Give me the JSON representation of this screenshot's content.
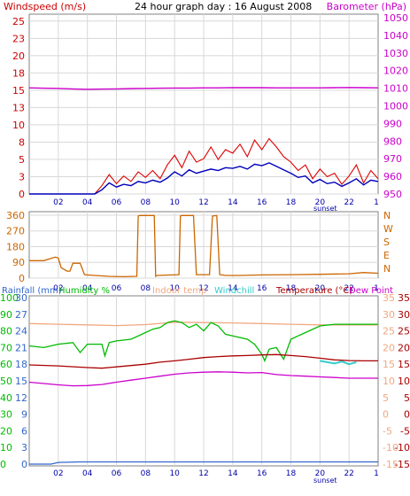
{
  "chart_data": [
    {
      "type": "line",
      "title": "24 hour graph day : 16 August 2008",
      "left_axis": {
        "label": "Windspeed (m/s)",
        "color": "#cc0000",
        "ticks": [
          "0",
          "3",
          "5",
          "8",
          "10",
          "13",
          "15",
          "18",
          "20",
          "23",
          "25"
        ],
        "range": [
          0,
          26
        ]
      },
      "right_axis": {
        "label": "Barometer (hPa)",
        "color": "#cc00cc",
        "ticks": [
          "950",
          "960",
          "970",
          "980",
          "990",
          "1000",
          "1010",
          "1020",
          "1030",
          "1040",
          "1050"
        ],
        "range": [
          950,
          1052
        ]
      },
      "x_ticks": [
        "02",
        "04",
        "06",
        "08",
        "10",
        "12",
        "14",
        "16",
        "18",
        "20",
        "22"
      ],
      "x_end_label": "1",
      "sunset_label": "sunset",
      "grid": true,
      "series": [
        {
          "key": "barometer",
          "color": "#cc00cc",
          "x": [
            0,
            1,
            2,
            3,
            4,
            5,
            6,
            7,
            8,
            9,
            10,
            11,
            12,
            13,
            14,
            15,
            16,
            17,
            18,
            19,
            20,
            21,
            22,
            23,
            24
          ],
          "y": [
            1010.2,
            1010.0,
            1009.9,
            1009.6,
            1009.4,
            1009.5,
            1009.6,
            1009.8,
            1009.9,
            1010.0,
            1010.1,
            1010.1,
            1010.2,
            1010.2,
            1010.3,
            1010.3,
            1010.3,
            1010.2,
            1010.2,
            1010.2,
            1010.2,
            1010.3,
            1010.4,
            1010.3,
            1010.2
          ]
        },
        {
          "key": "gust",
          "color": "#dd0000",
          "x": [
            0,
            4.5,
            5.0,
            5.5,
            6.0,
            6.5,
            7.0,
            7.5,
            8.0,
            8.5,
            9.0,
            9.5,
            10.0,
            10.5,
            11.0,
            11.5,
            12.0,
            12.5,
            13.0,
            13.5,
            14.0,
            14.5,
            15.0,
            15.5,
            16.0,
            16.5,
            17.0,
            17.5,
            18.0,
            18.5,
            19.0,
            19.5,
            20.0,
            20.5,
            21.0,
            21.5,
            22.0,
            22.5,
            23.0,
            23.5,
            24.0
          ],
          "y": [
            0,
            0,
            1.2,
            2.8,
            1.5,
            2.6,
            1.8,
            3.2,
            2.4,
            3.4,
            2.2,
            4.2,
            5.6,
            3.8,
            6.2,
            4.6,
            5.1,
            6.8,
            5.0,
            6.4,
            5.9,
            7.2,
            5.4,
            7.8,
            6.4,
            8.0,
            6.8,
            5.4,
            4.6,
            3.4,
            4.2,
            2.2,
            3.6,
            2.5,
            3.0,
            1.4,
            2.6,
            4.2,
            1.6,
            3.4,
            2.2
          ]
        },
        {
          "key": "wind_avg",
          "color": "#0000bb",
          "x": [
            0,
            4.5,
            5.0,
            5.5,
            6.0,
            6.5,
            7.0,
            7.5,
            8.0,
            8.5,
            9.0,
            9.5,
            10.0,
            10.5,
            11.0,
            11.5,
            12.0,
            12.5,
            13.0,
            13.5,
            14.0,
            14.5,
            15.0,
            15.5,
            16.0,
            16.5,
            17.0,
            17.5,
            18.0,
            18.5,
            19.0,
            19.5,
            20.0,
            20.5,
            21.0,
            21.5,
            22.0,
            22.5,
            23.0,
            23.5,
            24.0
          ],
          "y": [
            0,
            0,
            0.6,
            1.6,
            1.0,
            1.4,
            1.2,
            1.8,
            1.6,
            2.0,
            1.7,
            2.3,
            3.2,
            2.6,
            3.5,
            3.0,
            3.3,
            3.6,
            3.4,
            3.8,
            3.7,
            4.0,
            3.6,
            4.3,
            4.1,
            4.5,
            4.0,
            3.5,
            3.0,
            2.4,
            2.6,
            1.6,
            2.1,
            1.5,
            1.7,
            1.1,
            1.6,
            2.2,
            1.3,
            2.0,
            1.8
          ]
        }
      ]
    },
    {
      "type": "line",
      "left_axis": {
        "ticks": [
          "0",
          "90",
          "180",
          "270",
          "360"
        ],
        "range": [
          0,
          380
        ]
      },
      "right_axis": {
        "ticks": [
          "N",
          "E",
          "S",
          "W",
          "N"
        ],
        "color": "#cc6600"
      },
      "x_ticks": [
        "02",
        "04",
        "06",
        "08",
        "10",
        "12",
        "14",
        "16",
        "18",
        "20",
        "22"
      ],
      "x_end_label": "1",
      "grid": true,
      "series": [
        {
          "key": "wind_direction",
          "color": "#cc6600",
          "x": [
            0,
            1.0,
            1.8,
            2.0,
            2.2,
            2.6,
            2.8,
            3.0,
            3.5,
            3.8,
            4.5,
            5.5,
            6.5,
            7.4,
            7.5,
            7.6,
            8.6,
            8.7,
            8.8,
            10.3,
            10.4,
            10.5,
            11.3,
            11.5,
            12.4,
            12.6,
            12.9,
            13.1,
            13.5,
            14.5,
            16,
            18,
            20,
            22,
            23,
            24
          ],
          "y": [
            100,
            100,
            120,
            115,
            60,
            40,
            40,
            85,
            85,
            20,
            15,
            10,
            8,
            10,
            355,
            358,
            358,
            10,
            15,
            20,
            355,
            358,
            358,
            20,
            20,
            355,
            358,
            20,
            15,
            15,
            18,
            20,
            22,
            25,
            32,
            28
          ]
        }
      ]
    },
    {
      "type": "line",
      "left_axes": [
        {
          "label": "Rainfall (mm)",
          "color": "#3366cc",
          "ticks": [
            "0",
            "3",
            "6",
            "9",
            "12",
            "15",
            "18",
            "21",
            "24",
            "27",
            "30"
          ]
        },
        {
          "label": "Humidity %",
          "color": "#00bb00",
          "ticks": [
            "0",
            "10",
            "20",
            "30",
            "40",
            "50",
            "60",
            "70",
            "80",
            "90",
            "100"
          ]
        }
      ],
      "right_axes": [
        {
          "label": "Temperature (°C)",
          "color": "#aa0000",
          "ticks": [
            "-15",
            "-10",
            "-5",
            "0",
            "5",
            "10",
            "15",
            "20",
            "25",
            "30",
            "35"
          ],
          "range": [
            -15,
            35
          ]
        },
        {
          "label": "Dew Point",
          "color": "#cc00cc",
          "ticks": [
            "-15",
            "-10",
            "-5",
            "0",
            "5",
            "10",
            "15",
            "20",
            "25",
            "30",
            "35"
          ]
        }
      ],
      "legend": [
        "Indoor temp",
        "Windchill"
      ],
      "legend_colors": {
        "indoor": "#f0a880",
        "windchill": "#33cccc"
      },
      "x_ticks": [
        "02",
        "04",
        "06",
        "08",
        "10",
        "12",
        "14",
        "16",
        "18",
        "20",
        "22"
      ],
      "x_end_label": "1",
      "sunset_label": "sunset",
      "grid": true,
      "series": [
        {
          "key": "indoor",
          "color": "#f0a880",
          "x": [
            0,
            2,
            4,
            6,
            8,
            10,
            12,
            14,
            16,
            18,
            20,
            22,
            24
          ],
          "y": [
            27.2,
            27.0,
            26.8,
            26.6,
            26.9,
            27.6,
            27.5,
            27.4,
            27.2,
            27.0,
            26.8,
            26.8,
            26.8
          ]
        },
        {
          "key": "humidity",
          "color": "#00bb00",
          "x": [
            0,
            1,
            2,
            3,
            3.5,
            4,
            5,
            5.2,
            5.5,
            6,
            7,
            8,
            8.5,
            9,
            9.5,
            10,
            10.5,
            11,
            11.5,
            12,
            12.5,
            13,
            13.5,
            14,
            14.5,
            15,
            15.5,
            16,
            16.2,
            16.5,
            17,
            17.5,
            18,
            18.5,
            19,
            20,
            21,
            22,
            23,
            24
          ],
          "y": [
            71,
            70,
            72,
            73,
            67,
            72,
            72,
            65,
            73,
            74,
            75,
            79,
            81,
            82,
            85,
            86,
            85,
            82,
            84,
            80,
            85,
            83,
            78,
            77,
            76,
            75,
            72,
            66,
            62,
            69,
            70,
            63,
            75,
            77,
            79,
            83,
            84,
            84,
            84,
            84
          ]
        },
        {
          "key": "temperature",
          "color": "#aa0000",
          "x": [
            0,
            2,
            4,
            5,
            6,
            7,
            8,
            9,
            10,
            11,
            12,
            13,
            14,
            15,
            16,
            17,
            18,
            19,
            20,
            21,
            22,
            23,
            24
          ],
          "y": [
            14.8,
            14.5,
            14.0,
            13.8,
            14.2,
            14.6,
            15.0,
            15.6,
            16.0,
            16.5,
            17.0,
            17.3,
            17.5,
            17.6,
            17.8,
            17.9,
            17.6,
            17.3,
            16.8,
            16.3,
            16.1,
            16.0,
            16.0
          ]
        },
        {
          "key": "windchill",
          "color": "#33cccc",
          "x": [
            20.0,
            20.5,
            21.0,
            21.5,
            22.0,
            22.5
          ],
          "y": [
            16.0,
            15.6,
            15.2,
            15.8,
            15.0,
            15.6
          ]
        },
        {
          "key": "dewpoint",
          "color": "#cc00cc",
          "x": [
            0,
            1,
            2,
            3,
            4,
            5,
            6,
            7,
            8,
            9,
            10,
            11,
            12,
            13,
            14,
            15,
            16,
            17,
            18,
            19,
            20,
            21,
            22,
            23,
            24
          ],
          "y": [
            9.6,
            9.2,
            8.8,
            8.5,
            8.6,
            8.9,
            9.6,
            10.2,
            10.8,
            11.4,
            12.0,
            12.4,
            12.6,
            12.7,
            12.6,
            12.4,
            12.5,
            11.9,
            11.6,
            11.4,
            11.2,
            11.0,
            10.8,
            10.8,
            10.8
          ]
        },
        {
          "key": "rainfall",
          "color": "#3366cc",
          "x": [
            0,
            1.5,
            2.0,
            3.5,
            24
          ],
          "y": [
            0,
            0,
            0.3,
            0.4,
            0.4
          ]
        }
      ]
    }
  ]
}
